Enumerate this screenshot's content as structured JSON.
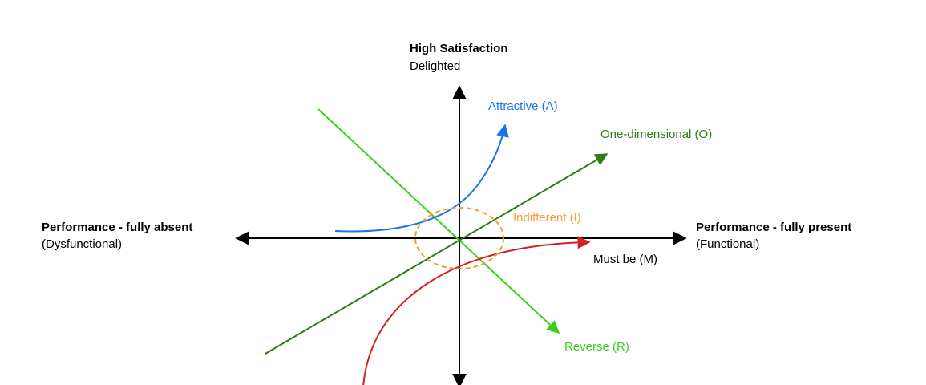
{
  "axes": {
    "top": {
      "title": "High Satisfaction",
      "subtitle": "Delighted"
    },
    "left": {
      "title": "Performance - fully absent",
      "subtitle": "(Dysfunctional)"
    },
    "right": {
      "title": "Performance - fully present",
      "subtitle": "(Functional)"
    }
  },
  "curves": {
    "attractive": "Attractive (A)",
    "one_dimensional": "One-dimensional (O)",
    "indifferent": "Indifferent (I)",
    "must_be": "Must be (M)",
    "reverse": "Reverse (R)"
  }
}
